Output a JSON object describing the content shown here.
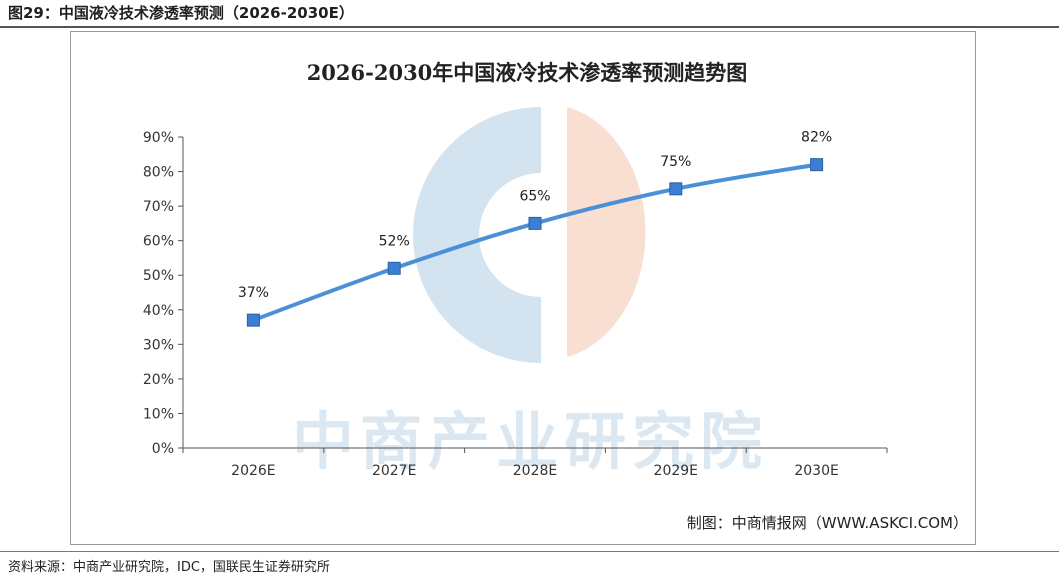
{
  "header": {
    "title": "图29：中国液冷技术渗透率预测（2026-2030E）"
  },
  "footer": {
    "source": "资料来源：中商产业研究院，IDC，国联民生证券研究所"
  },
  "watermark": {
    "text": "中商产业研究院"
  },
  "credit": "制图：中商情报网（WWW.ASKCI.COM）",
  "colors": {
    "series": "#4a90d9",
    "marker": "#3b7fd4",
    "watermark_blue": "#cfe0ee",
    "watermark_orange": "#f8dccd"
  },
  "chart_data": {
    "type": "line",
    "title": "2026-2030年中国液冷技术渗透率预测趋势图",
    "categories": [
      "2026E",
      "2027E",
      "2028E",
      "2029E",
      "2030E"
    ],
    "values": [
      37,
      52,
      65,
      75,
      82
    ],
    "data_labels": [
      "37%",
      "52%",
      "65%",
      "75%",
      "82%"
    ],
    "ylim": [
      0,
      90
    ],
    "y_ticks": [
      "0%",
      "10%",
      "20%",
      "30%",
      "40%",
      "50%",
      "60%",
      "70%",
      "80%",
      "90%"
    ],
    "xlabel": "",
    "ylabel": "",
    "grid": false,
    "legend": "none"
  }
}
